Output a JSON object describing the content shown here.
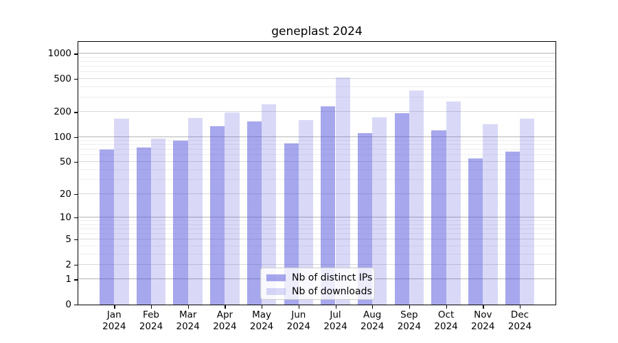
{
  "title": "geneplast 2024",
  "colors": {
    "bar_ips": "rgba(80,80,220,0.5)",
    "bar_downloads": "rgba(80,80,220,0.22)",
    "grid_power10": "#b3b3b3",
    "grid_labeled": "#d9d9d9",
    "grid_minor": "#eeeeee",
    "axis": "#000000",
    "legend_border": "#cccccc"
  },
  "legend": {
    "items": [
      {
        "label": "Nb of distinct IPs",
        "color_key": "bar_ips"
      },
      {
        "label": "Nb of downloads",
        "color_key": "bar_downloads"
      }
    ]
  },
  "chart_data": {
    "type": "bar",
    "title": "geneplast 2024",
    "categories": [
      "Jan 2024",
      "Feb 2024",
      "Mar 2024",
      "Apr 2024",
      "May 2024",
      "Jun 2024",
      "Jul 2024",
      "Aug 2024",
      "Sep 2024",
      "Oct 2024",
      "Nov 2024",
      "Dec 2024"
    ],
    "series": [
      {
        "name": "Nb of distinct IPs",
        "values": [
          71,
          75,
          90,
          135,
          153,
          84,
          234,
          112,
          195,
          121,
          55,
          67
        ]
      },
      {
        "name": "Nb of downloads",
        "values": [
          166,
          95,
          171,
          197,
          247,
          161,
          515,
          173,
          365,
          270,
          143,
          168
        ]
      }
    ],
    "xlabel": "",
    "ylabel": "",
    "y_scale": "log1p",
    "y_ticks": [
      0,
      1,
      2,
      5,
      10,
      20,
      50,
      100,
      200,
      500,
      1000
    ],
    "y_minor_ticks": [
      3,
      4,
      6,
      7,
      8,
      9,
      30,
      40,
      60,
      70,
      80,
      90,
      300,
      400,
      600,
      700,
      800,
      900
    ],
    "ylim": [
      0,
      1390
    ],
    "grid": true,
    "legend_position": "lower center"
  }
}
